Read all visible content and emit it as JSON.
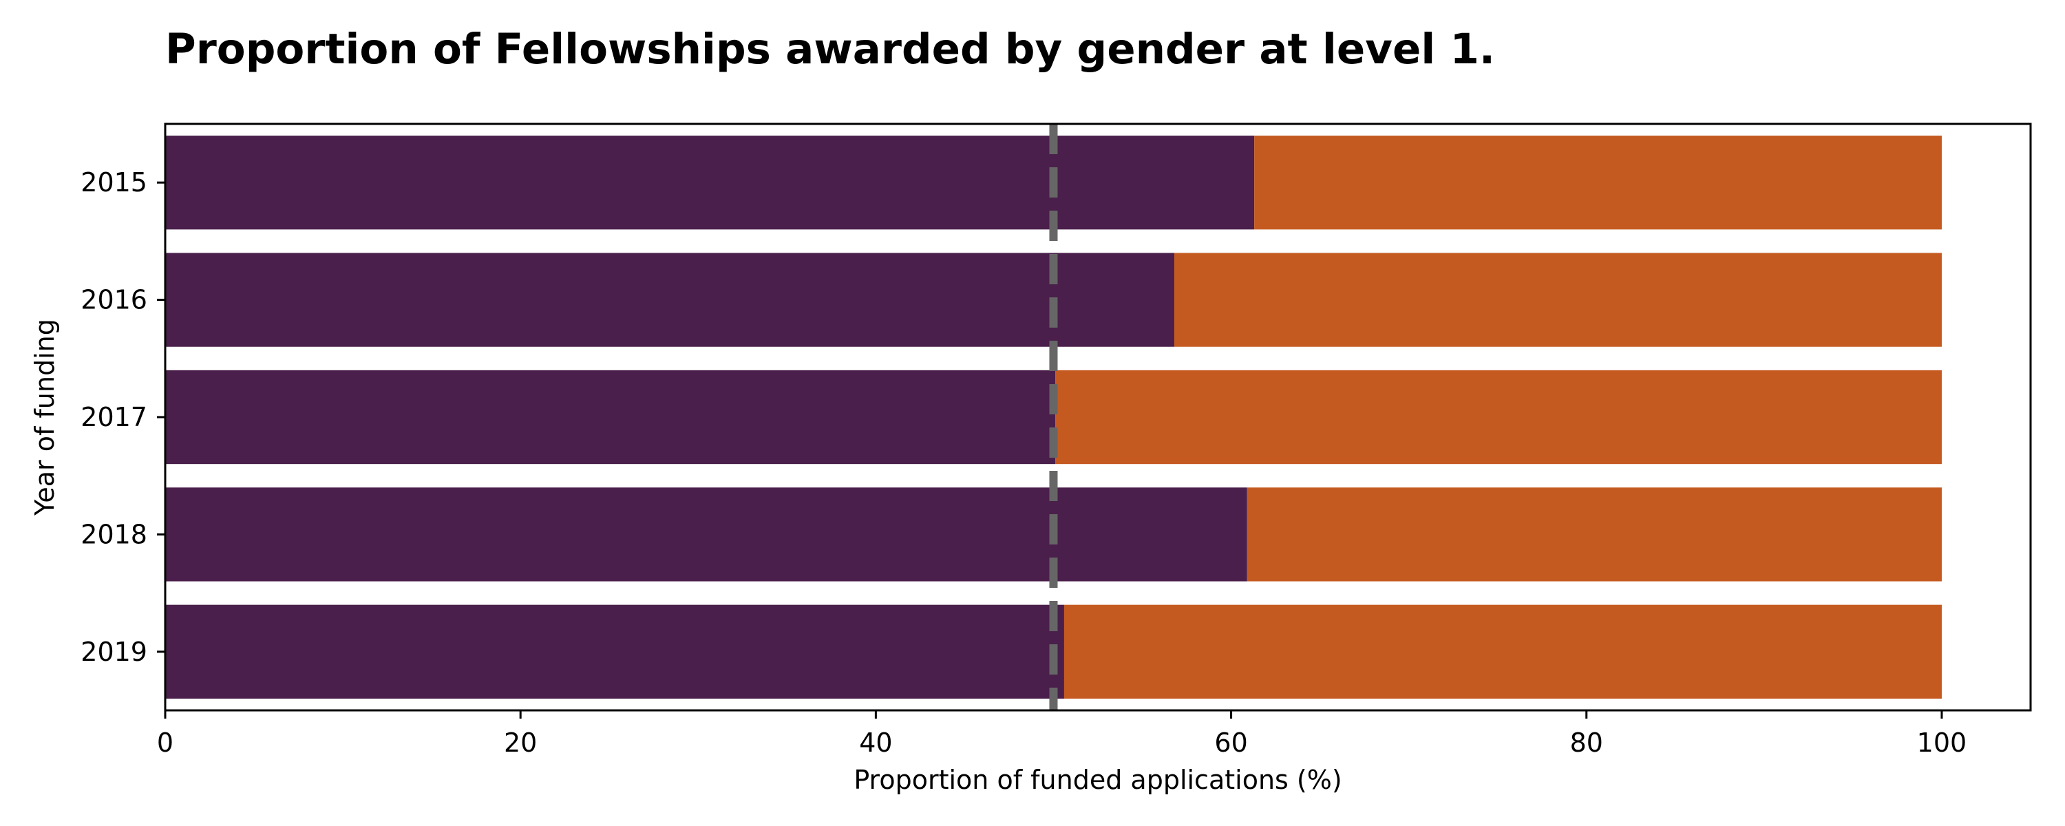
{
  "chart_data": {
    "type": "bar",
    "orientation": "horizontal",
    "stacked": true,
    "title": "Proportion of Fellowships awarded by gender at level 1.",
    "xlabel": "Proportion of funded applications (%)",
    "ylabel": "Year of funding",
    "categories": [
      "2015",
      "2016",
      "2017",
      "2018",
      "2019"
    ],
    "series": [
      {
        "values": [
          61.3,
          56.8,
          50.1,
          60.9,
          50.6
        ],
        "color": "#4a1f4b"
      },
      {
        "values": [
          38.7,
          43.2,
          49.9,
          39.1,
          49.4
        ],
        "color": "#c55a21"
      }
    ],
    "xlim": [
      0,
      105
    ],
    "xticks": [
      0,
      20,
      40,
      60,
      80,
      100
    ],
    "reference_line": {
      "x": 50,
      "style": "dashed",
      "color": "#666666"
    },
    "grid": false,
    "legend": "none"
  }
}
